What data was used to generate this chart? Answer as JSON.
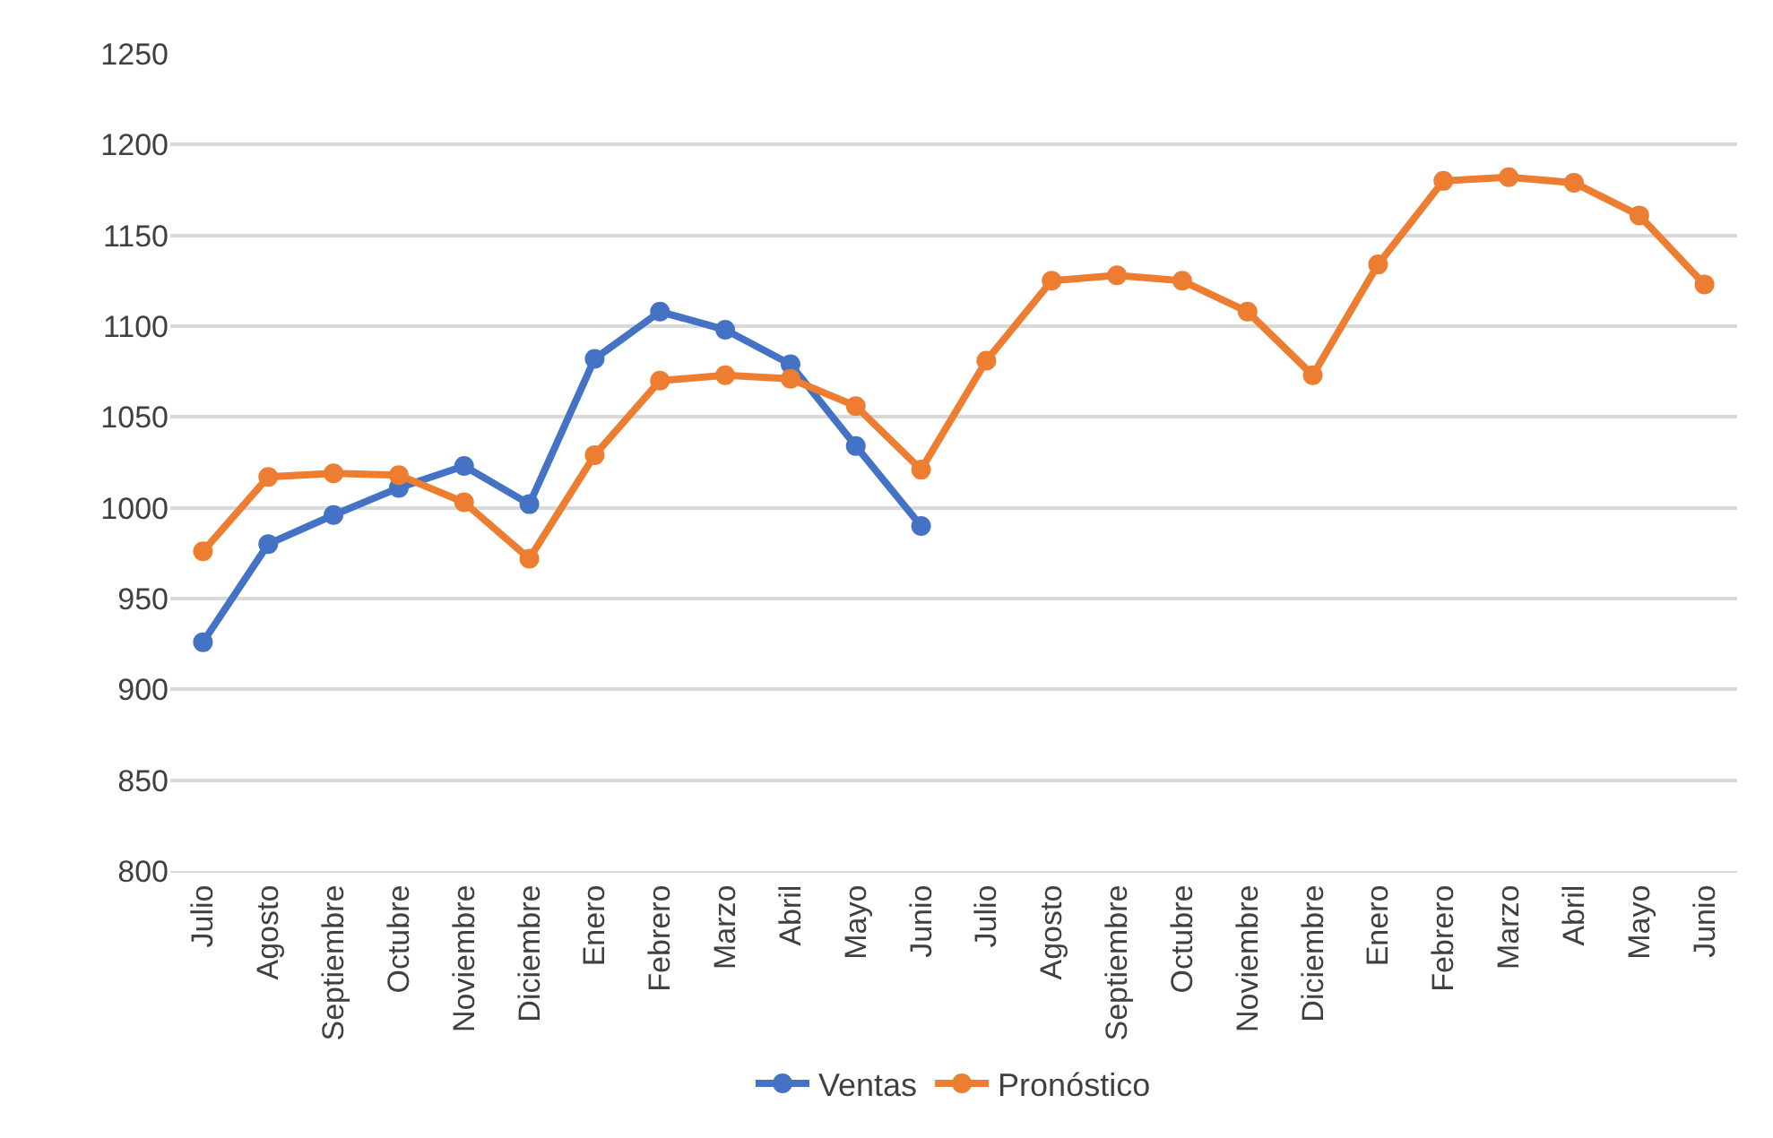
{
  "chart_data": {
    "type": "line",
    "categories": [
      "Julio",
      "Agosto",
      "Septiembre",
      "Octubre",
      "Noviembre",
      "Diciembre",
      "Enero",
      "Febrero",
      "Marzo",
      "Abril",
      "Mayo",
      "Junio",
      "Julio",
      "Agosto",
      "Septiembre",
      "Octubre",
      "Noviembre",
      "Diciembre",
      "Enero",
      "Febrero",
      "Marzo",
      "Abril",
      "Mayo",
      "Junio"
    ],
    "series": [
      {
        "name": "Ventas",
        "color": "#4472c4",
        "values": [
          926,
          980,
          996,
          1011,
          1023,
          1002,
          1082,
          1108,
          1098,
          1079,
          1034,
          990,
          null,
          null,
          null,
          null,
          null,
          null,
          null,
          null,
          null,
          null,
          null,
          null
        ]
      },
      {
        "name": "Pronóstico",
        "color": "#ed7d31",
        "values": [
          976,
          1017,
          1019,
          1018,
          1003,
          972,
          1029,
          1070,
          1073,
          1071,
          1056,
          1021,
          1081,
          1125,
          1128,
          1125,
          1108,
          1073,
          1134,
          1180,
          1182,
          1179,
          1161,
          1123
        ]
      }
    ],
    "ylim": [
      800,
      1250
    ],
    "yticks": [
      800,
      850,
      900,
      950,
      1000,
      1050,
      1100,
      1150,
      1200,
      1250
    ],
    "grid": "y",
    "legend": "bottom",
    "marker": "circle",
    "line_style": "solid"
  }
}
